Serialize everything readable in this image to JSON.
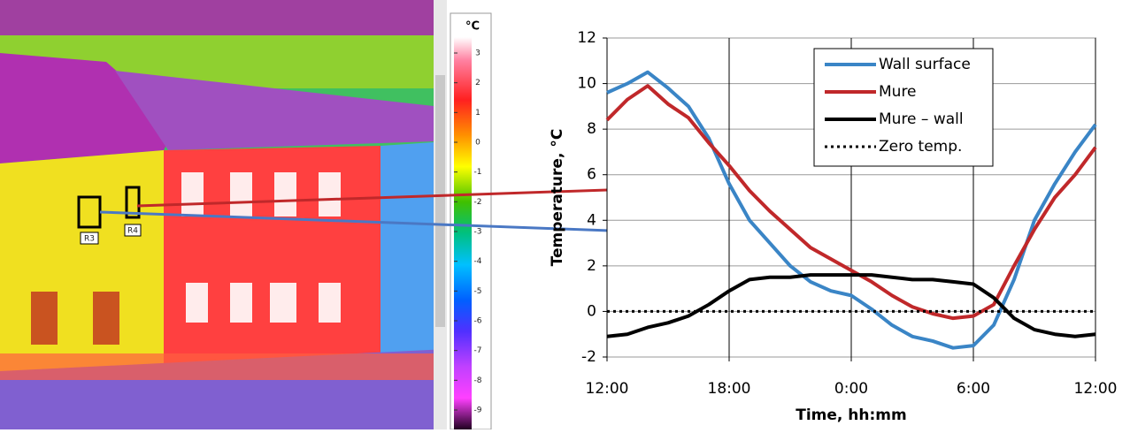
{
  "thermal_image": {
    "scale_unit": "°C",
    "scale_ticks": [
      3,
      2,
      1,
      0,
      -1,
      -2,
      -3,
      -4,
      -5,
      -6,
      -7,
      -8,
      -9
    ],
    "region_labels": [
      "R3",
      "R4"
    ]
  },
  "chart_data": {
    "type": "line",
    "x": [
      12,
      13,
      14,
      15,
      16,
      17,
      18,
      19,
      20,
      21,
      22,
      23,
      24,
      25,
      26,
      27,
      28,
      29,
      30,
      31,
      32,
      33,
      34,
      35,
      36
    ],
    "xlim": [
      12,
      36
    ],
    "xticks": [
      {
        "value": 12,
        "label": "12:00"
      },
      {
        "value": 18,
        "label": "18:00"
      },
      {
        "value": 24,
        "label": "0:00"
      },
      {
        "value": 30,
        "label": "6:00"
      },
      {
        "value": 36,
        "label": "12:00"
      }
    ],
    "ylim": [
      -2,
      12
    ],
    "yticks": [
      -2,
      0,
      2,
      4,
      6,
      8,
      10,
      12
    ],
    "xlabel": "Time, hh:mm",
    "ylabel": "Temperature, °C",
    "grid": true,
    "legend": "upper right",
    "series": [
      {
        "name": "Wall surface",
        "color": "#3a85c6",
        "line_style": "solid",
        "values": [
          9.6,
          10.0,
          10.5,
          9.8,
          9.0,
          7.6,
          5.6,
          4.0,
          3.0,
          2.0,
          1.3,
          0.9,
          0.7,
          0.1,
          -0.6,
          -1.1,
          -1.3,
          -1.6,
          -1.5,
          -0.6,
          1.4,
          4.0,
          5.6,
          7.0,
          8.2
        ]
      },
      {
        "name": "Mure",
        "color": "#c0282a",
        "line_style": "solid",
        "values": [
          8.4,
          9.3,
          9.9,
          9.1,
          8.5,
          7.4,
          6.4,
          5.3,
          4.4,
          3.6,
          2.8,
          2.3,
          1.8,
          1.3,
          0.7,
          0.2,
          -0.1,
          -0.3,
          -0.2,
          0.3,
          2.0,
          3.6,
          5.0,
          6.0,
          7.2
        ]
      },
      {
        "name": "Mure – wall",
        "color": "#000000",
        "line_style": "solid",
        "values": [
          -1.1,
          -1.0,
          -0.7,
          -0.5,
          -0.2,
          0.3,
          0.9,
          1.4,
          1.5,
          1.5,
          1.6,
          1.6,
          1.6,
          1.6,
          1.5,
          1.4,
          1.4,
          1.3,
          1.2,
          0.6,
          -0.3,
          -0.8,
          -1.0,
          -1.1,
          -1.0
        ]
      },
      {
        "name": "Zero temp.",
        "color": "#000000",
        "line_style": "dotted",
        "values": [
          0,
          0,
          0,
          0,
          0,
          0,
          0,
          0,
          0,
          0,
          0,
          0,
          0,
          0,
          0,
          0,
          0,
          0,
          0,
          0,
          0,
          0,
          0,
          0,
          0
        ]
      }
    ]
  }
}
